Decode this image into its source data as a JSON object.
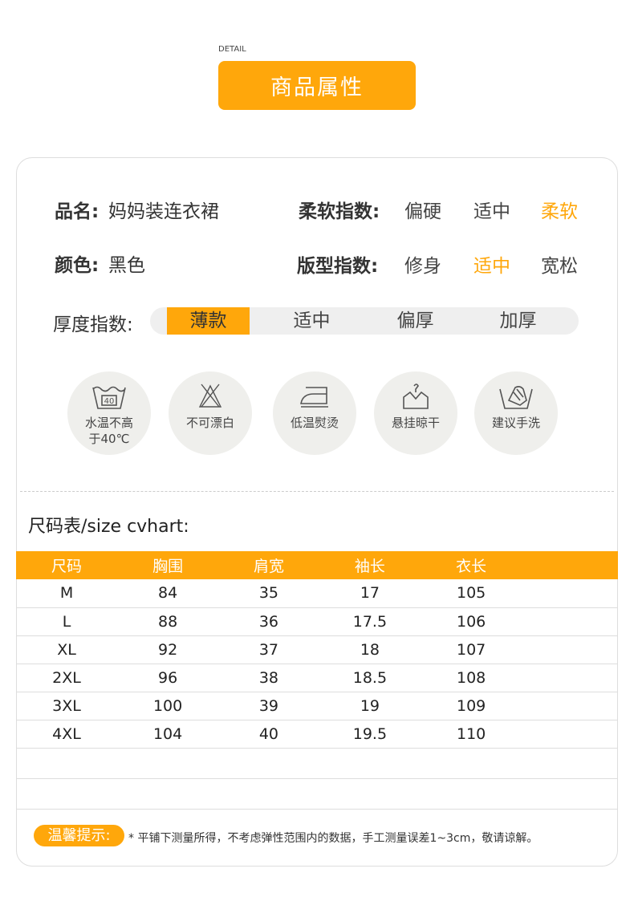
{
  "header": {
    "detail": "DETAIL",
    "title": "商品属性"
  },
  "attrs": {
    "name_label": "品名:",
    "name_value": "妈妈装连衣裙",
    "color_label": "颜色:",
    "color_value": "黑色",
    "softness": {
      "label": "柔软指数:",
      "options": [
        "偏硬",
        "适中",
        "柔软"
      ],
      "selected": "柔软"
    },
    "fit": {
      "label": "版型指数:",
      "options": [
        "修身",
        "适中",
        "宽松"
      ],
      "selected": "适中"
    },
    "thickness": {
      "label": "厚度指数:",
      "options": [
        "薄款",
        "适中",
        "偏厚",
        "加厚"
      ],
      "selected": "薄款"
    }
  },
  "care": [
    {
      "icon": "wash-40-icon",
      "label": "水温不高",
      "label2": "于40℃"
    },
    {
      "icon": "no-bleach-icon",
      "label": "不可漂白"
    },
    {
      "icon": "low-iron-icon",
      "label": "低温熨烫"
    },
    {
      "icon": "hang-dry-icon",
      "label": "悬挂晾干"
    },
    {
      "icon": "hand-wash-icon",
      "label": "建议手洗"
    }
  ],
  "size_chart": {
    "title": "尺码表/size cvhart:",
    "headers": [
      "尺码",
      "胸围",
      "肩宽",
      "袖长",
      "衣长"
    ],
    "rows": [
      [
        "M",
        "84",
        "35",
        "17",
        "105"
      ],
      [
        "L",
        "88",
        "36",
        "17.5",
        "106"
      ],
      [
        "XL",
        "92",
        "37",
        "18",
        "107"
      ],
      [
        "2XL",
        "96",
        "38",
        "18.5",
        "108"
      ],
      [
        "3XL",
        "100",
        "39",
        "19",
        "109"
      ],
      [
        "4XL",
        "104",
        "40",
        "19.5",
        "110"
      ]
    ]
  },
  "tip": {
    "badge": "温馨提示:",
    "text": "* 平铺下测量所得，不考虑弹性范围内的数据，手工测量误差1~3cm，敬请谅解。"
  },
  "colors": {
    "accent": "#FFA70B"
  }
}
